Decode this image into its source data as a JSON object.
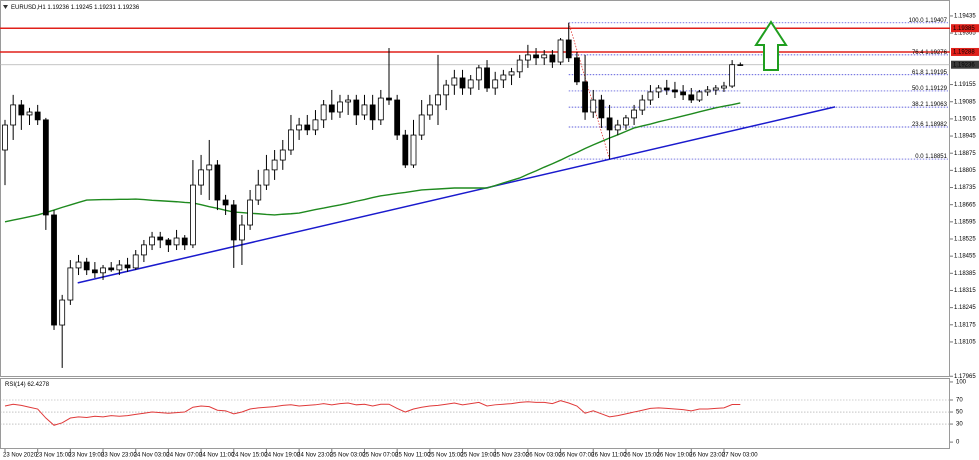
{
  "chart_data": {
    "type": "candlestick",
    "title": "EURUSD,H1",
    "categories": [
      "23 Nov 2020",
      null,
      null,
      null,
      "23 Nov 15:00",
      null,
      null,
      null,
      "23 Nov 19:00",
      null,
      null,
      null,
      "23 Nov 23:00",
      null,
      null,
      null,
      "24 Nov 03:00",
      null,
      null,
      null,
      "24 Nov 07:00",
      null,
      null,
      null,
      "24 Nov 11:00",
      null,
      null,
      null,
      "24 Nov 15:00",
      null,
      null,
      null,
      "24 Nov 19:00",
      null,
      null,
      null,
      "24 Nov 23:00",
      null,
      null,
      null,
      "25 Nov 03:00",
      null,
      null,
      null,
      "25 Nov 07:00",
      null,
      null,
      null,
      "25 Nov 11:00",
      null,
      null,
      null,
      "25 Nov 15:00",
      null,
      null,
      null,
      "25 Nov 19:00",
      null,
      null,
      null,
      "25 Nov 23:00",
      null,
      null,
      null,
      "26 Nov 03:00",
      null,
      null,
      null,
      "26 Nov 07:00",
      null,
      null,
      null,
      "26 Nov 11:00",
      null,
      null,
      null,
      "26 Nov 15:00",
      null,
      null,
      null,
      "26 Nov 19:00",
      null,
      null,
      null,
      "26 Nov 23:00",
      null,
      null,
      null,
      "27 Nov 03:00",
      null,
      null
    ],
    "open": [
      1.18888,
      1.1899,
      1.19072,
      1.19031,
      1.19043,
      1.19011,
      1.18623,
      1.18174,
      1.18276,
      1.18407,
      1.18431,
      1.18399,
      1.18387,
      1.18407,
      1.18399,
      1.18419,
      1.18407,
      1.1846,
      1.18501,
      1.18533,
      1.18521,
      1.18501,
      1.18529,
      1.18501,
      1.18745,
      1.18807,
      1.18827,
      1.18684,
      1.18664,
      1.18521,
      1.18582,
      1.18684,
      1.18745,
      1.18807,
      1.18847,
      1.18888,
      1.1897,
      1.1899,
      1.1897,
      1.19011,
      1.19072,
      1.19043,
      1.19084,
      1.19092,
      1.19031,
      1.19072,
      1.19011,
      1.191,
      1.19092,
      1.18949,
      1.18827,
      1.18949,
      1.19031,
      1.19072,
      1.19113,
      1.19153,
      1.19182,
      1.19141,
      1.19174,
      1.19223,
      1.19141,
      1.19174,
      1.19194,
      1.19207,
      1.19255,
      1.19276,
      1.19264,
      1.19276,
      1.19247,
      1.19337,
      1.19264,
      1.19166,
      1.19043,
      1.19092,
      1.19019,
      1.1897,
      1.1899,
      1.19019,
      1.19051,
      1.19092,
      1.19125,
      1.19141,
      1.19133,
      1.19125,
      1.19113,
      1.19092,
      1.19125,
      1.19133,
      1.19141,
      1.19149,
      1.19236
    ],
    "high": [
      1.19011,
      1.19113,
      1.19092,
      1.1906,
      1.19072,
      1.19019,
      1.18643,
      1.18297,
      1.18439,
      1.1846,
      1.18448,
      1.18431,
      1.18419,
      1.18431,
      1.18439,
      1.18448,
      1.1848,
      1.18521,
      1.18554,
      1.18554,
      1.18529,
      1.18562,
      1.18541,
      1.18847,
      1.18868,
      1.18929,
      1.18847,
      1.18705,
      1.18684,
      1.18623,
      1.18725,
      1.18807,
      1.18868,
      1.18888,
      1.18929,
      1.19031,
      1.19019,
      1.19031,
      1.19051,
      1.19092,
      1.19133,
      1.19113,
      1.19113,
      1.19113,
      1.19113,
      1.19113,
      1.19133,
      1.19304,
      1.19113,
      1.1897,
      1.19011,
      1.19092,
      1.19113,
      1.19276,
      1.19174,
      1.19215,
      1.19215,
      1.19194,
      1.19235,
      1.19255,
      1.19207,
      1.19215,
      1.19223,
      1.19276,
      1.19317,
      1.19304,
      1.19296,
      1.19296,
      1.19345,
      1.19407,
      1.19288,
      1.19276,
      1.19133,
      1.19113,
      1.19072,
      1.19011,
      1.19031,
      1.19072,
      1.19113,
      1.19153,
      1.19153,
      1.19174,
      1.19166,
      1.19153,
      1.19141,
      1.19133,
      1.19149,
      1.19153,
      1.19166,
      1.19255,
      1.19245
    ],
    "low": [
      1.18745,
      1.18929,
      1.1897,
      1.1899,
      1.1899,
      1.18562,
      1.18154,
      1.17999,
      1.18256,
      1.18378,
      1.18378,
      1.18366,
      1.18358,
      1.18391,
      1.18378,
      1.18391,
      1.18399,
      1.18431,
      1.1848,
      1.18488,
      1.18472,
      1.1848,
      1.1848,
      1.18488,
      1.18705,
      1.18684,
      1.18643,
      1.18623,
      1.18407,
      1.18419,
      1.18562,
      1.18664,
      1.18725,
      1.18766,
      1.18807,
      1.18868,
      1.18929,
      1.18949,
      1.18949,
      1.18978,
      1.19011,
      1.19019,
      1.19031,
      1.1899,
      1.19011,
      1.1897,
      1.1899,
      1.19072,
      1.18929,
      1.18815,
      1.18815,
      1.18929,
      1.19011,
      1.1899,
      1.19051,
      1.19113,
      1.19113,
      1.19113,
      1.19133,
      1.19125,
      1.19113,
      1.19141,
      1.19153,
      1.19182,
      1.19223,
      1.19235,
      1.19235,
      1.19223,
      1.19235,
      1.19247,
      1.19153,
      1.19011,
      1.19019,
      1.18978,
      1.18851,
      1.18949,
      1.1897,
      1.1899,
      1.19031,
      1.19072,
      1.191,
      1.19113,
      1.191,
      1.19092,
      1.1908,
      1.19084,
      1.19109,
      1.19113,
      1.19125,
      1.19141,
      1.19231
    ],
    "close": [
      1.1899,
      1.19072,
      1.19031,
      1.19043,
      1.19011,
      1.18623,
      1.18174,
      1.18276,
      1.18407,
      1.18431,
      1.18399,
      1.18387,
      1.18407,
      1.18399,
      1.18419,
      1.18407,
      1.1846,
      1.18501,
      1.18533,
      1.18521,
      1.18501,
      1.18529,
      1.18501,
      1.18745,
      1.18807,
      1.18827,
      1.18684,
      1.18664,
      1.18521,
      1.18582,
      1.18684,
      1.18745,
      1.18807,
      1.18847,
      1.18888,
      1.1897,
      1.1899,
      1.1897,
      1.19011,
      1.19072,
      1.19043,
      1.19084,
      1.19092,
      1.19031,
      1.19072,
      1.19011,
      1.191,
      1.19092,
      1.18949,
      1.18827,
      1.18949,
      1.19031,
      1.19072,
      1.19113,
      1.19153,
      1.19182,
      1.19141,
      1.19174,
      1.19223,
      1.19141,
      1.19174,
      1.19194,
      1.19207,
      1.19255,
      1.19276,
      1.19264,
      1.19276,
      1.19247,
      1.19337,
      1.19264,
      1.19166,
      1.19043,
      1.19092,
      1.19019,
      1.1897,
      1.1899,
      1.19019,
      1.19051,
      1.19092,
      1.19125,
      1.19141,
      1.19133,
      1.19125,
      1.19113,
      1.19092,
      1.19125,
      1.19133,
      1.19141,
      1.19149,
      1.19236,
      1.19236
    ],
    "up_color": "#ffffff",
    "down_color": "#000000",
    "wick_color": "#000000",
    "ma": {
      "color": "#1f8a1f",
      "values": [
        1.18595,
        1.18602,
        1.18609,
        1.18616,
        1.18623,
        1.18633,
        1.18643,
        1.18654,
        1.18664,
        1.18674,
        1.18684,
        1.18685,
        1.18686,
        1.18686,
        1.18687,
        1.18687,
        1.18688,
        1.18686,
        1.18683,
        1.18681,
        1.18679,
        1.18677,
        1.18674,
        1.18672,
        1.18665,
        1.18657,
        1.1865,
        1.18642,
        1.18635,
        1.18633,
        1.1863,
        1.18628,
        1.18625,
        1.18623,
        1.18626,
        1.18628,
        1.18631,
        1.18638,
        1.18645,
        1.18651,
        1.18658,
        1.18664,
        1.18671,
        1.18679,
        1.18686,
        1.18694,
        1.18701,
        1.18706,
        1.18711,
        1.18715,
        1.1872,
        1.18725,
        1.18727,
        1.18729,
        1.18731,
        1.18733,
        1.18733,
        1.18733,
        1.18733,
        1.18733,
        1.18743,
        1.18754,
        1.18764,
        1.18774,
        1.18789,
        1.18803,
        1.18818,
        1.18832,
        1.18847,
        1.18863,
        1.18878,
        1.18894,
        1.18909,
        1.18923,
        1.18937,
        1.1895,
        1.18964,
        1.18978,
        1.18986,
        1.18994,
        1.19003,
        1.19011,
        1.19019,
        1.19027,
        1.19035,
        1.19044,
        1.19052,
        1.1906,
        1.19067,
        1.19073,
        1.1908
      ]
    },
    "ylim": [
      1.17962,
      1.195
    ],
    "yticks": [
      1.19435,
      1.19365,
      1.19155,
      1.19085,
      1.19015,
      1.18945,
      1.18875,
      1.18805,
      1.18735,
      1.18665,
      1.18595,
      1.18525,
      1.18455,
      1.18385,
      1.18315,
      1.18245,
      1.18175,
      1.18105,
      1.17965
    ],
    "levels": [
      {
        "value": 1.19385,
        "color": "#e0201a"
      },
      {
        "value": 1.19288,
        "color": "#e0201a"
      }
    ],
    "fibonacci": {
      "color": "#2a2ad0",
      "anchor_color": "#e0201a",
      "from": 69,
      "to": 74,
      "levels": [
        {
          "ratio": "100.0",
          "price": 1.19407
        },
        {
          "ratio": "76.4",
          "price": 1.19276
        },
        {
          "ratio": "61.8",
          "price": 1.19195
        },
        {
          "ratio": "50.0",
          "price": 1.19129
        },
        {
          "ratio": "38.2",
          "price": 1.19063
        },
        {
          "ratio": "23.6",
          "price": 1.18982
        },
        {
          "ratio": "0.0",
          "price": 1.18851
        }
      ]
    },
    "trendlines": [
      {
        "x": [
          8.9,
          101.6
        ],
        "y": [
          1.18346,
          1.19064
        ],
        "color": "#1a1acd"
      }
    ],
    "indicator": {
      "type": "line",
      "name": "RSI(14)",
      "color": "#e03a3a",
      "values": [
        60,
        63,
        61,
        58,
        55,
        40,
        28,
        32,
        40,
        42,
        41,
        43,
        42,
        44,
        43,
        44,
        46,
        48,
        50,
        49,
        48,
        49,
        50,
        58,
        60,
        59,
        53,
        52,
        47,
        50,
        55,
        57,
        58,
        59,
        61,
        62,
        60,
        61,
        62,
        64,
        62,
        64,
        65,
        62,
        63,
        60,
        63,
        63,
        56,
        50,
        55,
        58,
        60,
        61,
        63,
        65,
        62,
        64,
        66,
        60,
        62,
        63,
        64,
        66,
        67,
        66,
        66,
        64,
        69,
        65,
        60,
        48,
        52,
        47,
        42,
        44,
        47,
        50,
        53,
        56,
        57,
        56,
        55,
        54,
        52,
        55,
        55,
        56,
        57,
        62.5,
        62.4278
      ],
      "ylim": [
        -9.8,
        104.9
      ],
      "yticks": [
        100,
        70,
        50,
        30,
        0
      ]
    }
  }
}
